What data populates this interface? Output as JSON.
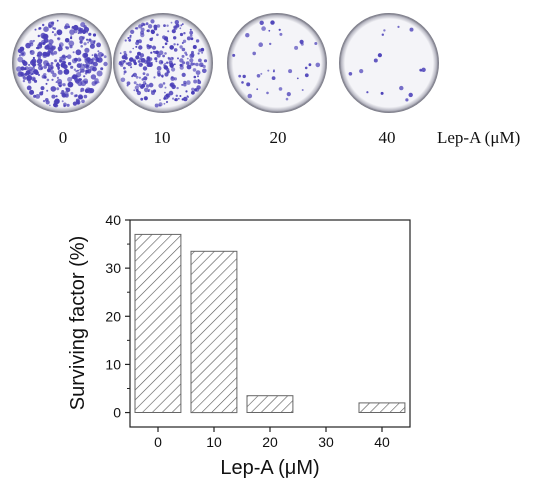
{
  "dish_panel": {
    "concentrations": [
      "0",
      "10",
      "20",
      "40"
    ],
    "axis_label": "Lep-A (μM)",
    "stain_color": "#4a3fb8",
    "colony_density": [
      1.0,
      0.85,
      0.12,
      0.05
    ]
  },
  "chart_data": {
    "type": "bar",
    "categories": [
      "0",
      "10",
      "20",
      "30",
      "40"
    ],
    "values": [
      37,
      33.5,
      3.5,
      0,
      2
    ],
    "xlabel": "Lep-A (μM)",
    "ylabel": "Surviving factor (%)",
    "ylim": [
      -3,
      40
    ],
    "yticks": [
      "0",
      "10",
      "20",
      "30",
      "40"
    ],
    "bar_fill": "hatched",
    "bar_color": "#555555",
    "grid": false
  }
}
